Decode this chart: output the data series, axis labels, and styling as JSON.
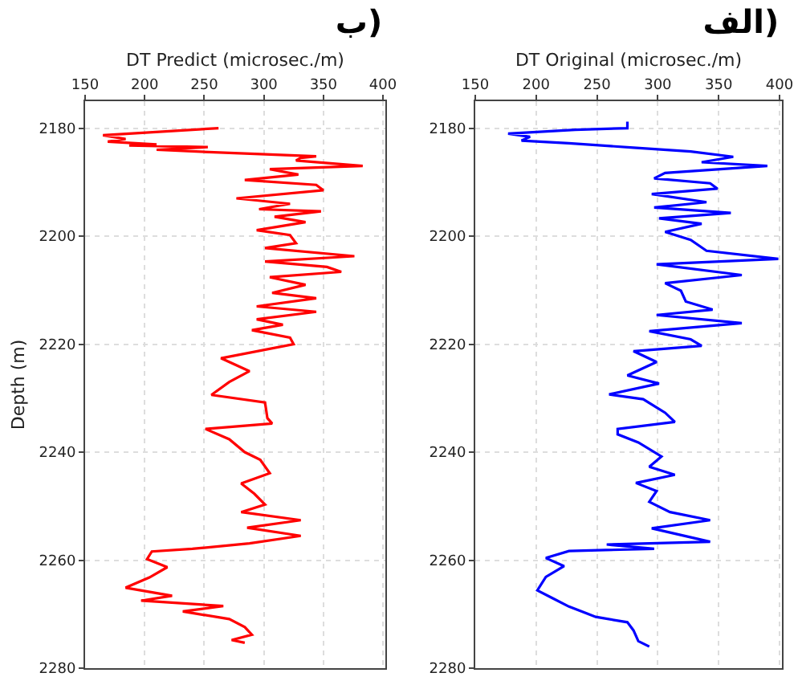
{
  "chart_data": [
    {
      "type": "line",
      "title": "ب)",
      "xlabel": "DT Predict (microsec./m)",
      "ylabel": "Depth (m)",
      "xlim": [
        150,
        402
      ],
      "xticks": [
        150,
        200,
        250,
        300,
        350,
        400
      ],
      "ylim": [
        2280,
        2175
      ],
      "yticks": [
        2180,
        2200,
        2220,
        2240,
        2260,
        2280
      ],
      "grid": true,
      "series": [
        {
          "color": "#ff0000",
          "x": [
            262,
            165,
            184,
            169,
            210,
            187,
            253,
            210,
            284,
            344,
            331,
            327,
            383,
            305,
            329,
            284,
            344,
            350,
            277,
            322,
            296,
            348,
            309,
            335,
            294,
            322,
            327,
            301,
            376,
            301,
            353,
            365,
            305,
            335,
            307,
            344,
            294,
            344,
            294,
            316,
            290,
            322,
            325,
            264,
            288,
            271,
            256,
            301,
            303,
            307,
            251,
            271,
            284,
            297,
            305,
            281,
            292,
            301,
            281,
            331,
            286,
            331,
            288,
            240,
            206,
            202,
            219,
            204,
            184,
            223,
            197,
            266,
            232,
            271,
            284,
            290,
            273,
            284
          ],
          "values": [
            2180,
            2181.3,
            2182,
            2182.5,
            2183,
            2183.2,
            2183.5,
            2184,
            2184.7,
            2185.2,
            2185.5,
            2186,
            2187,
            2187.6,
            2188.6,
            2189.6,
            2190.5,
            2191.5,
            2193,
            2194,
            2195,
            2195.4,
            2196.4,
            2197.4,
            2198.9,
            2199.8,
            2201.3,
            2202.2,
            2203.7,
            2204.7,
            2205.7,
            2206.6,
            2207.6,
            2209,
            2210.5,
            2211.5,
            2213,
            2214,
            2215.4,
            2216.4,
            2217.4,
            2218.8,
            2220,
            2222.6,
            2225,
            2227,
            2229.4,
            2230.8,
            2233.7,
            2234.7,
            2235.7,
            2237.6,
            2240,
            2241.4,
            2243.9,
            2245.8,
            2247.7,
            2249.7,
            2251.1,
            2252.6,
            2254,
            2255.5,
            2256.9,
            2257.9,
            2258.4,
            2259.8,
            2261.3,
            2263.2,
            2265.1,
            2266.6,
            2267.5,
            2268.5,
            2269.5,
            2270.9,
            2272.4,
            2273.8,
            2274.8,
            2275.3
          ]
        }
      ]
    },
    {
      "type": "line",
      "title": "الف)",
      "xlabel": "DT Original (microsec./m)",
      "xlim": [
        150,
        402
      ],
      "xticks": [
        150,
        200,
        250,
        300,
        350,
        400
      ],
      "ylim": [
        2280,
        2175
      ],
      "yticks": [
        2180,
        2200,
        2220,
        2240,
        2260,
        2280
      ],
      "grid": true,
      "series": [
        {
          "color": "#0000ff",
          "x": [
            275,
            275,
            232,
            177,
            195,
            188,
            227,
            280,
            327,
            362,
            336,
            390,
            306,
            297,
            343,
            349,
            295,
            340,
            297,
            360,
            301,
            336,
            306,
            327,
            340,
            399,
            299,
            369,
            306,
            319,
            323,
            345,
            299,
            369,
            293,
            327,
            336,
            280,
            299,
            275,
            301,
            260,
            288,
            306,
            314,
            267,
            267,
            284,
            303,
            293,
            314,
            282,
            299,
            293,
            310,
            343,
            295,
            343,
            258,
            297,
            227,
            208,
            223,
            208,
            201,
            214,
            227,
            249,
            275,
            280,
            284,
            293
          ],
          "values": [
            2178.8,
            2180,
            2180.3,
            2181,
            2181.6,
            2182.3,
            2182.8,
            2183.6,
            2184.3,
            2185.3,
            2186.3,
            2187,
            2188.3,
            2189.3,
            2190.2,
            2191.2,
            2192.2,
            2193.7,
            2194.7,
            2195.7,
            2196.7,
            2197.7,
            2199.2,
            2200.7,
            2202.7,
            2204.2,
            2205.2,
            2207.2,
            2208.7,
            2210.1,
            2212.1,
            2213.6,
            2214.6,
            2216.1,
            2217.6,
            2219.1,
            2220.3,
            2221.3,
            2223.3,
            2225.8,
            2227.3,
            2229.3,
            2230.2,
            2232.7,
            2234.4,
            2235.7,
            2236.7,
            2238.2,
            2240.8,
            2242.7,
            2244.2,
            2245.7,
            2247.2,
            2249.2,
            2251.1,
            2252.6,
            2254.1,
            2256.6,
            2257.1,
            2257.9,
            2258.3,
            2259.6,
            2261.1,
            2263.1,
            2265.6,
            2267.1,
            2268.6,
            2270.5,
            2271.5,
            2273,
            2275,
            2276
          ]
        }
      ]
    }
  ]
}
